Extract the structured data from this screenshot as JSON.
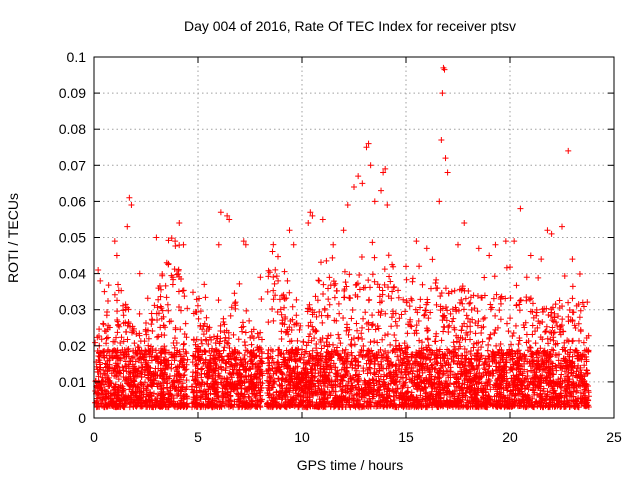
{
  "chart_data": {
    "type": "scatter",
    "title": "Day 004 of 2016, Rate Of TEC Index for receiver ptsv",
    "xlabel": "GPS time / hours",
    "ylabel": "ROTI / TECUs",
    "xlim": [
      0,
      25
    ],
    "ylim": [
      0,
      0.1
    ],
    "x_ticks": [
      0,
      5,
      10,
      15,
      20,
      25
    ],
    "x_tick_labels": [
      "0",
      "5",
      "10",
      "15",
      "20",
      "25"
    ],
    "y_ticks": [
      0,
      0.01,
      0.02,
      0.03,
      0.04,
      0.05,
      0.06,
      0.07,
      0.08,
      0.09,
      0.1
    ],
    "y_tick_labels": [
      "0",
      "0.01",
      "0.02",
      "0.03",
      "0.04",
      "0.05",
      "0.06",
      "0.07",
      "0.08",
      "0.09",
      "0.1"
    ],
    "grid": true,
    "marker": "+",
    "color": "#ff0000",
    "data_gaps_hours": [
      [
        4.5,
        4.7
      ],
      [
        8.1,
        8.3
      ]
    ],
    "points": [
      [
        0.2,
        0.041
      ],
      [
        0.3,
        0.038
      ],
      [
        0.5,
        0.035
      ],
      [
        1.0,
        0.049
      ],
      [
        1.1,
        0.045
      ],
      [
        1.6,
        0.053
      ],
      [
        1.7,
        0.061
      ],
      [
        1.8,
        0.059
      ],
      [
        2.2,
        0.04
      ],
      [
        3.0,
        0.05
      ],
      [
        3.5,
        0.043
      ],
      [
        3.9,
        0.049
      ],
      [
        4.1,
        0.054
      ],
      [
        4.3,
        0.048
      ],
      [
        5.3,
        0.037
      ],
      [
        6.0,
        0.048
      ],
      [
        6.1,
        0.057
      ],
      [
        6.4,
        0.056
      ],
      [
        6.5,
        0.055
      ],
      [
        7.2,
        0.049
      ],
      [
        7.3,
        0.048
      ],
      [
        8.0,
        0.039
      ],
      [
        9.3,
        0.038
      ],
      [
        9.4,
        0.052
      ],
      [
        9.6,
        0.048
      ],
      [
        10.3,
        0.054
      ],
      [
        10.4,
        0.057
      ],
      [
        10.5,
        0.056
      ],
      [
        11.0,
        0.055
      ],
      [
        11.5,
        0.048
      ],
      [
        12.0,
        0.052
      ],
      [
        12.2,
        0.059
      ],
      [
        12.5,
        0.064
      ],
      [
        12.7,
        0.067
      ],
      [
        12.9,
        0.065
      ],
      [
        13.1,
        0.075
      ],
      [
        13.2,
        0.076
      ],
      [
        13.3,
        0.07
      ],
      [
        13.5,
        0.06
      ],
      [
        13.8,
        0.063
      ],
      [
        13.9,
        0.068
      ],
      [
        14.0,
        0.069
      ],
      [
        14.1,
        0.059
      ],
      [
        15.0,
        0.042
      ],
      [
        15.5,
        0.049
      ],
      [
        16.0,
        0.047
      ],
      [
        16.6,
        0.06
      ],
      [
        16.7,
        0.077
      ],
      [
        16.75,
        0.09
      ],
      [
        16.8,
        0.097
      ],
      [
        16.85,
        0.0965
      ],
      [
        16.9,
        0.072
      ],
      [
        17.0,
        0.068
      ],
      [
        17.5,
        0.048
      ],
      [
        17.8,
        0.054
      ],
      [
        18.5,
        0.047
      ],
      [
        19.0,
        0.045
      ],
      [
        19.3,
        0.048
      ],
      [
        19.8,
        0.049
      ],
      [
        20.2,
        0.049
      ],
      [
        20.5,
        0.058
      ],
      [
        21.0,
        0.045
      ],
      [
        21.5,
        0.044
      ],
      [
        21.8,
        0.052
      ],
      [
        22.0,
        0.051
      ],
      [
        22.5,
        0.053
      ],
      [
        22.8,
        0.074
      ],
      [
        23.0,
        0.044
      ],
      [
        23.5,
        0.032
      ]
    ]
  }
}
